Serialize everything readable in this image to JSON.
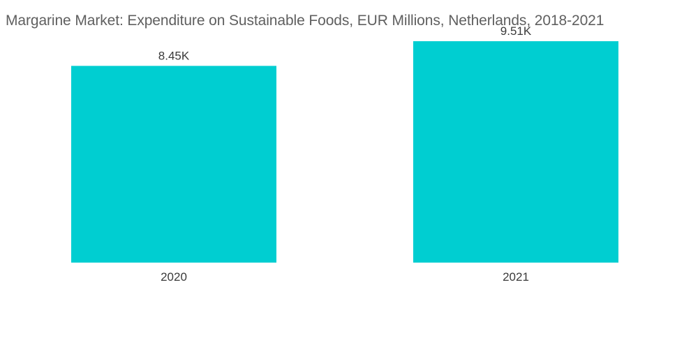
{
  "chart_data": {
    "type": "bar",
    "title": "Margarine Market: Expenditure on Sustainable Foods, EUR Millions, Netherlands, 2018-2021",
    "categories": [
      "2020",
      "2021"
    ],
    "values": [
      8450,
      9510
    ],
    "value_labels": [
      "8.45K",
      "9.51K"
    ],
    "xlabel": "",
    "ylabel": "",
    "ylim": [
      0,
      10500
    ],
    "grid": false,
    "legend": "none",
    "bar_color": "#00CED1"
  }
}
